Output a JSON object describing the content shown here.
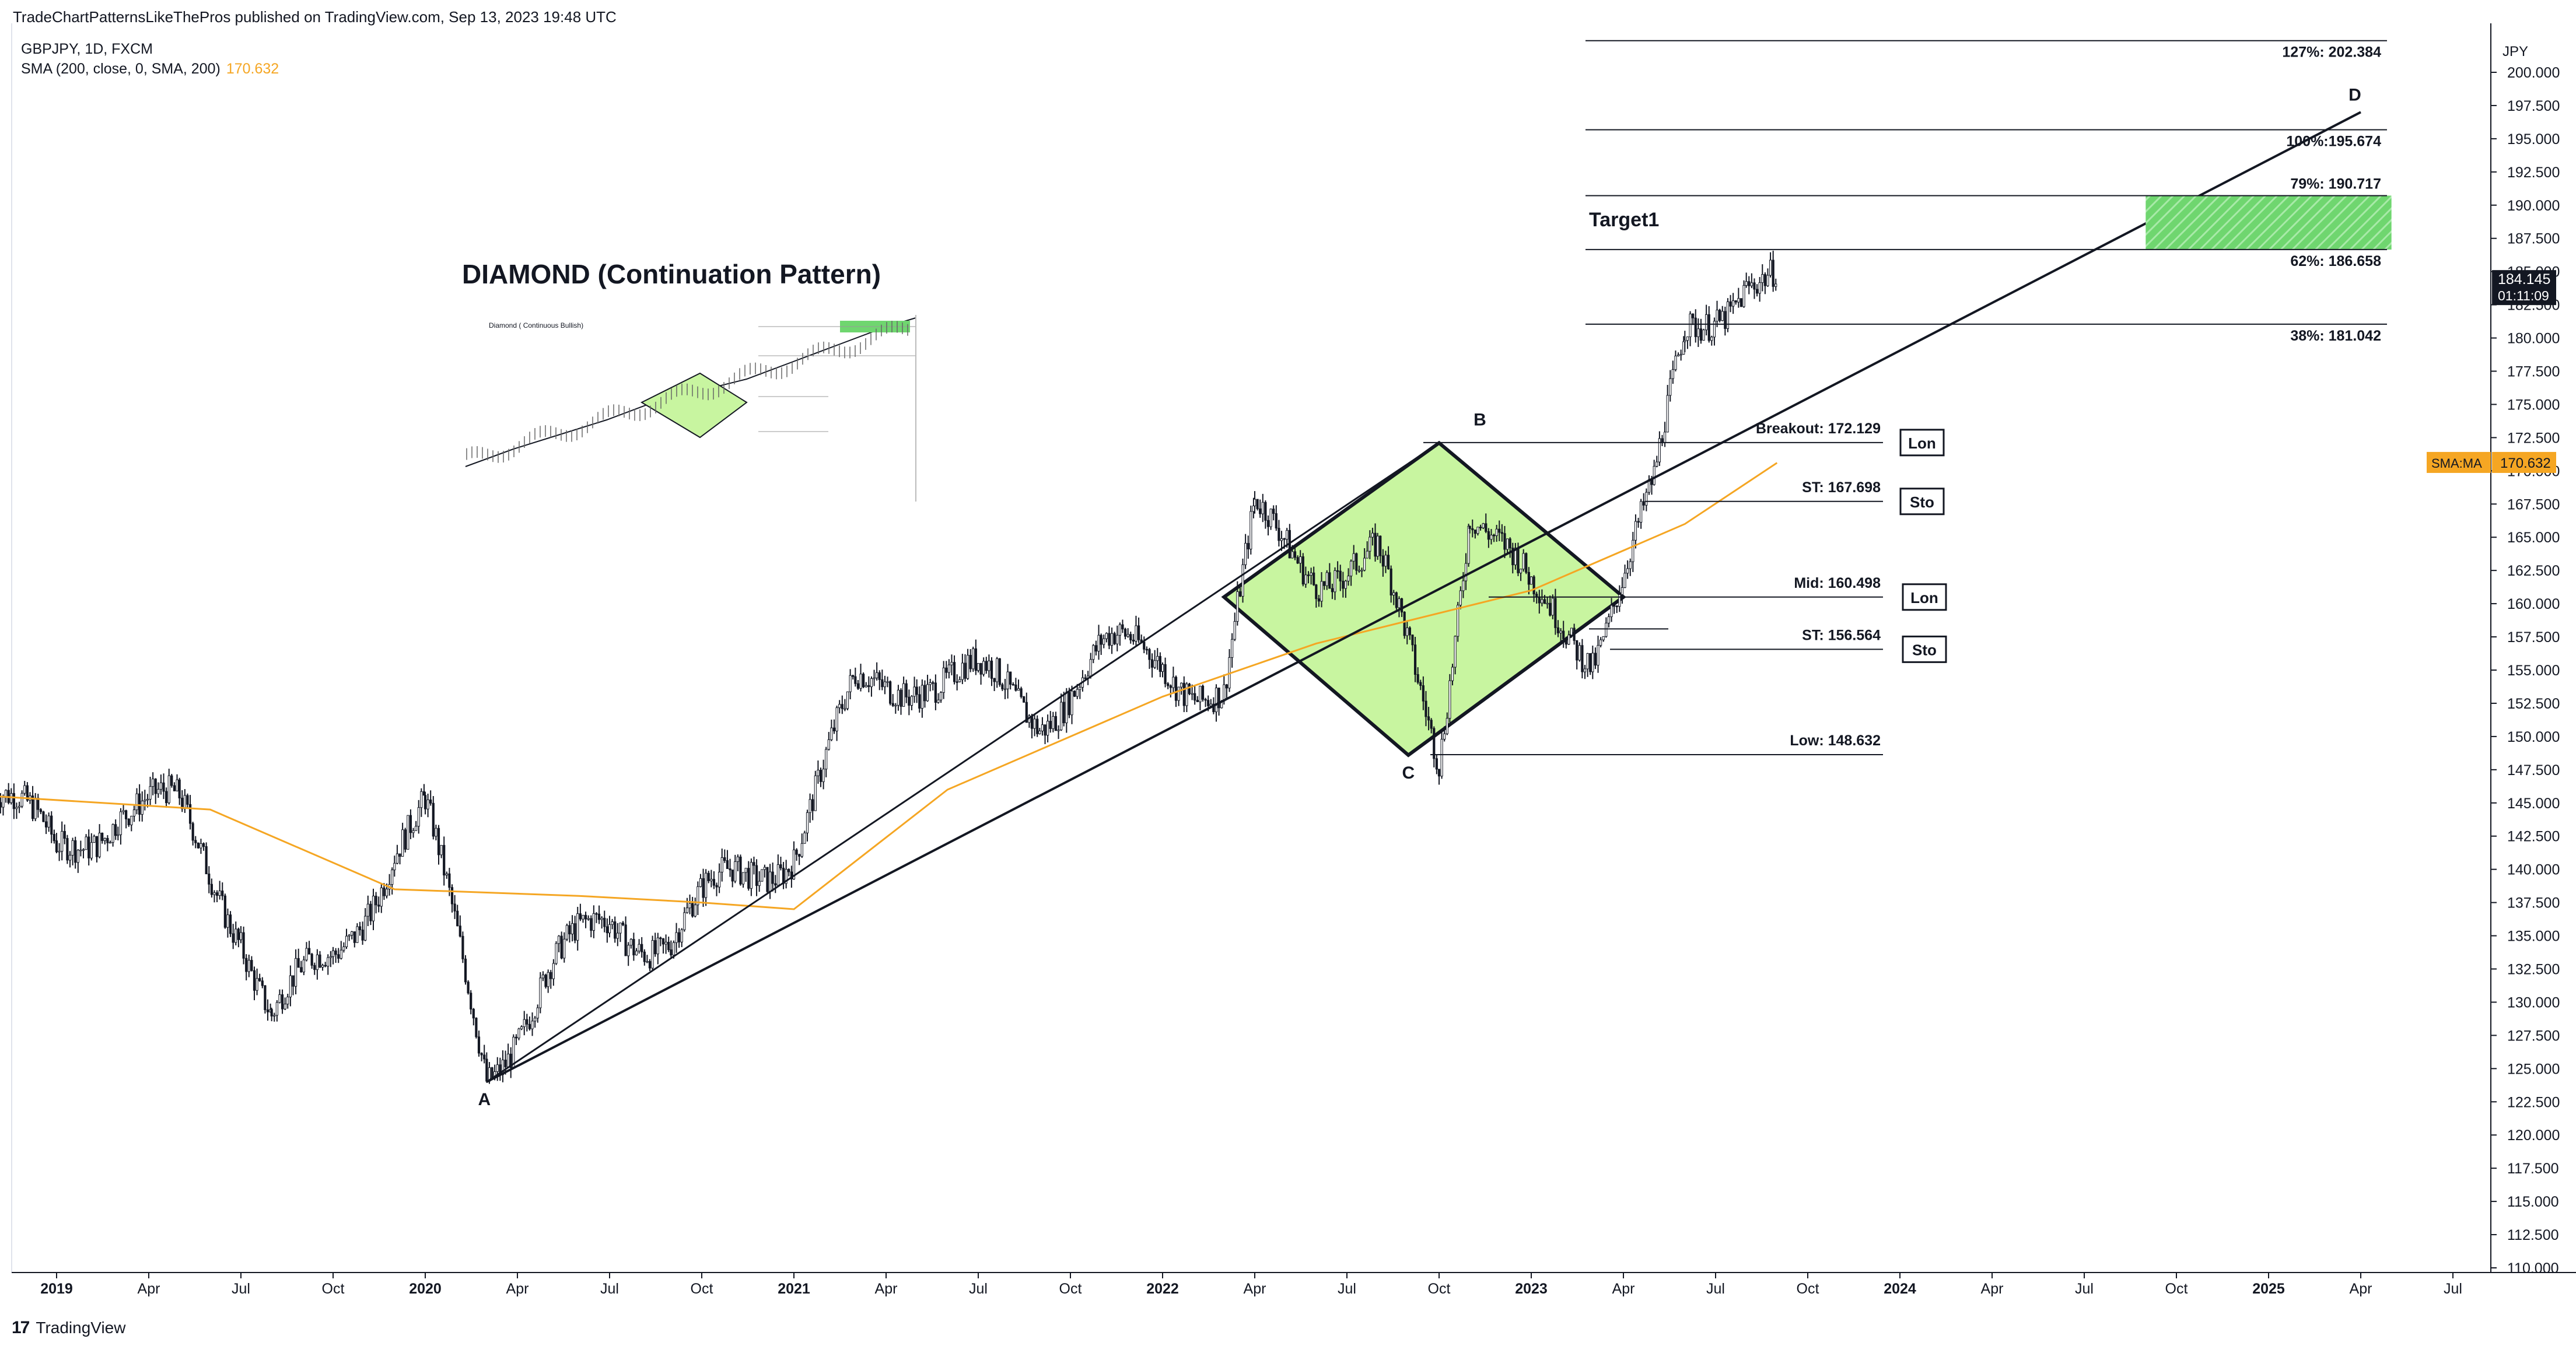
{
  "header": {
    "publisher_line": "TradeChartPatternsLikeThePros published on TradingView.com, Sep 13, 2023 19:48 UTC",
    "symbol_line": "GBPJPY, 1D, FXCM",
    "sma_label": "SMA (200, close, 0, SMA, 200)",
    "sma_value": "170.632"
  },
  "footer": {
    "logo_text": "TradingView",
    "logo_mark": "17"
  },
  "price_axis": {
    "currency": "JPY",
    "ticks": [
      "200.000",
      "197.500",
      "195.000",
      "192.500",
      "190.000",
      "187.500",
      "185.000",
      "182.500",
      "180.000",
      "177.500",
      "175.000",
      "172.500",
      "170.000",
      "167.500",
      "165.000",
      "162.500",
      "160.000",
      "157.500",
      "155.000",
      "152.500",
      "150.000",
      "147.500",
      "145.000",
      "142.500",
      "140.000",
      "137.500",
      "135.000",
      "132.500",
      "130.000",
      "127.500",
      "125.000",
      "122.500",
      "120.000",
      "117.500",
      "115.000",
      "112.500",
      "110.000"
    ],
    "last_price": "184.145",
    "countdown": "01:11:09",
    "sma_tag": "SMA:MA",
    "sma_tag_value": "170.632"
  },
  "time_axis": {
    "ticks": [
      {
        "label": "2019",
        "bold": true
      },
      {
        "label": "Apr"
      },
      {
        "label": "Jul"
      },
      {
        "label": "Oct"
      },
      {
        "label": "2020",
        "bold": true
      },
      {
        "label": "Apr"
      },
      {
        "label": "Jul"
      },
      {
        "label": "Oct"
      },
      {
        "label": "2021",
        "bold": true
      },
      {
        "label": "Apr"
      },
      {
        "label": "Jul"
      },
      {
        "label": "Oct"
      },
      {
        "label": "2022",
        "bold": true
      },
      {
        "label": "Apr"
      },
      {
        "label": "Jul"
      },
      {
        "label": "Oct"
      },
      {
        "label": "2023",
        "bold": true
      },
      {
        "label": "Apr"
      },
      {
        "label": "Jul"
      },
      {
        "label": "Oct"
      },
      {
        "label": "2024",
        "bold": true
      },
      {
        "label": "Apr"
      },
      {
        "label": "Jul"
      },
      {
        "label": "Oct"
      },
      {
        "label": "2025",
        "bold": true
      },
      {
        "label": "Apr"
      },
      {
        "label": "Jul"
      }
    ]
  },
  "annotations": {
    "pattern_title": "DIAMOND (Continuation Pattern)",
    "inset_caption": "Diamond ( Continuous Bullish)",
    "target_label": "Target1",
    "points": {
      "A": "A",
      "B": "B",
      "C": "C",
      "D": "D"
    },
    "levels": [
      {
        "label": "127%: 202.384",
        "price": 202.384
      },
      {
        "label": "100%:195.674",
        "price": 195.674
      },
      {
        "label": "79%: 190.717",
        "price": 190.717
      },
      {
        "label": "62%: 186.658",
        "price": 186.658
      },
      {
        "label": "38%: 181.042",
        "price": 181.042
      },
      {
        "label": "Breakout: 172.129",
        "price": 172.129
      },
      {
        "label": "ST: 167.698",
        "price": 167.698
      },
      {
        "label": "Mid: 160.498",
        "price": 160.498
      },
      {
        "label": "ST: 156.564",
        "price": 156.564
      },
      {
        "label": "Low: 148.632",
        "price": 148.632
      }
    ],
    "boxes": [
      "Lon",
      "Sto",
      "Lon",
      "Sto"
    ]
  },
  "colors": {
    "candle": "#131722",
    "sma": "#f5a623",
    "diamond_fill": "#c8f5a0",
    "target_fill": "#6fd66f"
  },
  "chart_data": {
    "type": "candlestick",
    "symbol": "GBPJPY",
    "timeframe": "1D",
    "ylim": [
      110,
      200
    ],
    "x_range": [
      "2018-11",
      "2025-08"
    ],
    "close_series": {
      "x": [
        "2018-11",
        "2019-01",
        "2019-03",
        "2019-05",
        "2019-07",
        "2019-08",
        "2019-10",
        "2019-12",
        "2020-01",
        "2020-03",
        "2020-05",
        "2020-07",
        "2020-09",
        "2020-11",
        "2021-01",
        "2021-03",
        "2021-05",
        "2021-07",
        "2021-09",
        "2021-11",
        "2022-01",
        "2022-03",
        "2022-04",
        "2022-06",
        "2022-08",
        "2022-10",
        "2022-11",
        "2023-01",
        "2023-03",
        "2023-05",
        "2023-06",
        "2023-08",
        "2023-09"
      ],
      "values": [
        146,
        141,
        145,
        144,
        136,
        129,
        133,
        142,
        144,
        125,
        132,
        136,
        135,
        139,
        142,
        153,
        155,
        154,
        152,
        156,
        156,
        153,
        166,
        163,
        163,
        149,
        168,
        160,
        157,
        168,
        180,
        185,
        184
      ]
    },
    "sma200": {
      "x": [
        "2018-11",
        "2019-06",
        "2019-12",
        "2020-06",
        "2020-10",
        "2021-01",
        "2021-06",
        "2022-01",
        "2022-06",
        "2023-01",
        "2023-06",
        "2023-09"
      ],
      "values": [
        145.5,
        144.5,
        138.5,
        138,
        137.5,
        137,
        146,
        153,
        157,
        161,
        166,
        170.6
      ]
    },
    "pattern_points": [
      {
        "name": "A",
        "date": "2020-03",
        "price": 124
      },
      {
        "name": "B",
        "date": "2022-10",
        "price": 172.1
      },
      {
        "name": "C",
        "date": "2022-09",
        "price": 148.6
      },
      {
        "name": "D",
        "date": "2025-04",
        "price": 197
      }
    ],
    "diamond": [
      {
        "date": "2022-03",
        "price": 160.5
      },
      {
        "date": "2022-10",
        "price": 172.1
      },
      {
        "date": "2023-04",
        "price": 160.5
      },
      {
        "date": "2022-09",
        "price": 148.6
      }
    ],
    "target_zone": {
      "from_date": "2024-09",
      "to_date": "2025-05",
      "low": 186.658,
      "high": 190.717
    }
  }
}
